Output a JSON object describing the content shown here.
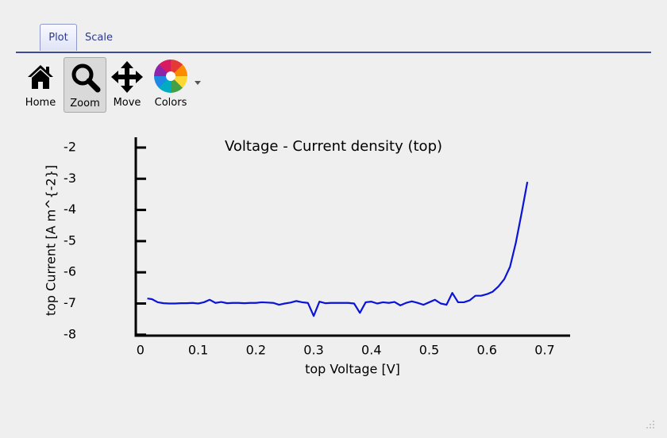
{
  "tabs": [
    "Plot",
    "Scale"
  ],
  "toolbar": [
    "Home",
    "Zoom",
    "Move",
    "Colors"
  ],
  "chart_data": {
    "type": "line",
    "title": "Voltage - Current density (top)",
    "x_label": "top Voltage [V]",
    "y_label": "top Current [A m^{-2}]",
    "x": [
      0.012,
      0.02,
      0.03,
      0.04,
      0.05,
      0.06,
      0.07,
      0.08,
      0.09,
      0.1,
      0.11,
      0.12,
      0.13,
      0.14,
      0.15,
      0.16,
      0.17,
      0.18,
      0.19,
      0.2,
      0.21,
      0.22,
      0.23,
      0.24,
      0.25,
      0.26,
      0.27,
      0.28,
      0.29,
      0.3,
      0.31,
      0.32,
      0.33,
      0.34,
      0.35,
      0.36,
      0.37,
      0.38,
      0.39,
      0.4,
      0.41,
      0.42,
      0.43,
      0.44,
      0.45,
      0.46,
      0.47,
      0.48,
      0.49,
      0.5,
      0.51,
      0.52,
      0.53,
      0.54,
      0.55,
      0.56,
      0.57,
      0.58,
      0.59,
      0.6,
      0.61,
      0.62,
      0.63,
      0.64,
      0.65,
      0.66,
      0.67
    ],
    "values": [
      -6.84,
      -6.86,
      -6.96,
      -6.99,
      -7.0,
      -7.0,
      -6.99,
      -6.99,
      -6.98,
      -7.0,
      -6.96,
      -6.88,
      -6.98,
      -6.95,
      -6.99,
      -6.98,
      -6.98,
      -6.99,
      -6.98,
      -6.98,
      -6.96,
      -6.97,
      -6.98,
      -7.04,
      -7.0,
      -6.97,
      -6.92,
      -6.96,
      -6.98,
      -7.4,
      -6.94,
      -6.99,
      -6.98,
      -6.98,
      -6.98,
      -6.98,
      -7.0,
      -7.3,
      -6.96,
      -6.94,
      -7.0,
      -6.96,
      -6.98,
      -6.95,
      -7.06,
      -6.98,
      -6.93,
      -6.98,
      -7.04,
      -6.96,
      -6.88,
      -7.0,
      -7.04,
      -6.66,
      -6.96,
      -6.96,
      -6.9,
      -6.75,
      -6.75,
      -6.7,
      -6.62,
      -6.45,
      -6.22,
      -5.82,
      -5.05,
      -4.1,
      -3.1
    ],
    "color": "#0b14d6",
    "xlim": [
      -0.008,
      0.744
    ],
    "xticks": [
      0,
      0.1,
      0.2,
      0.3,
      0.4,
      0.5,
      0.6,
      0.7
    ],
    "ylim": [
      -8.03,
      -1.67
    ],
    "yticks": [
      -8,
      -7,
      -6,
      -5,
      -4,
      -3,
      -2
    ]
  }
}
